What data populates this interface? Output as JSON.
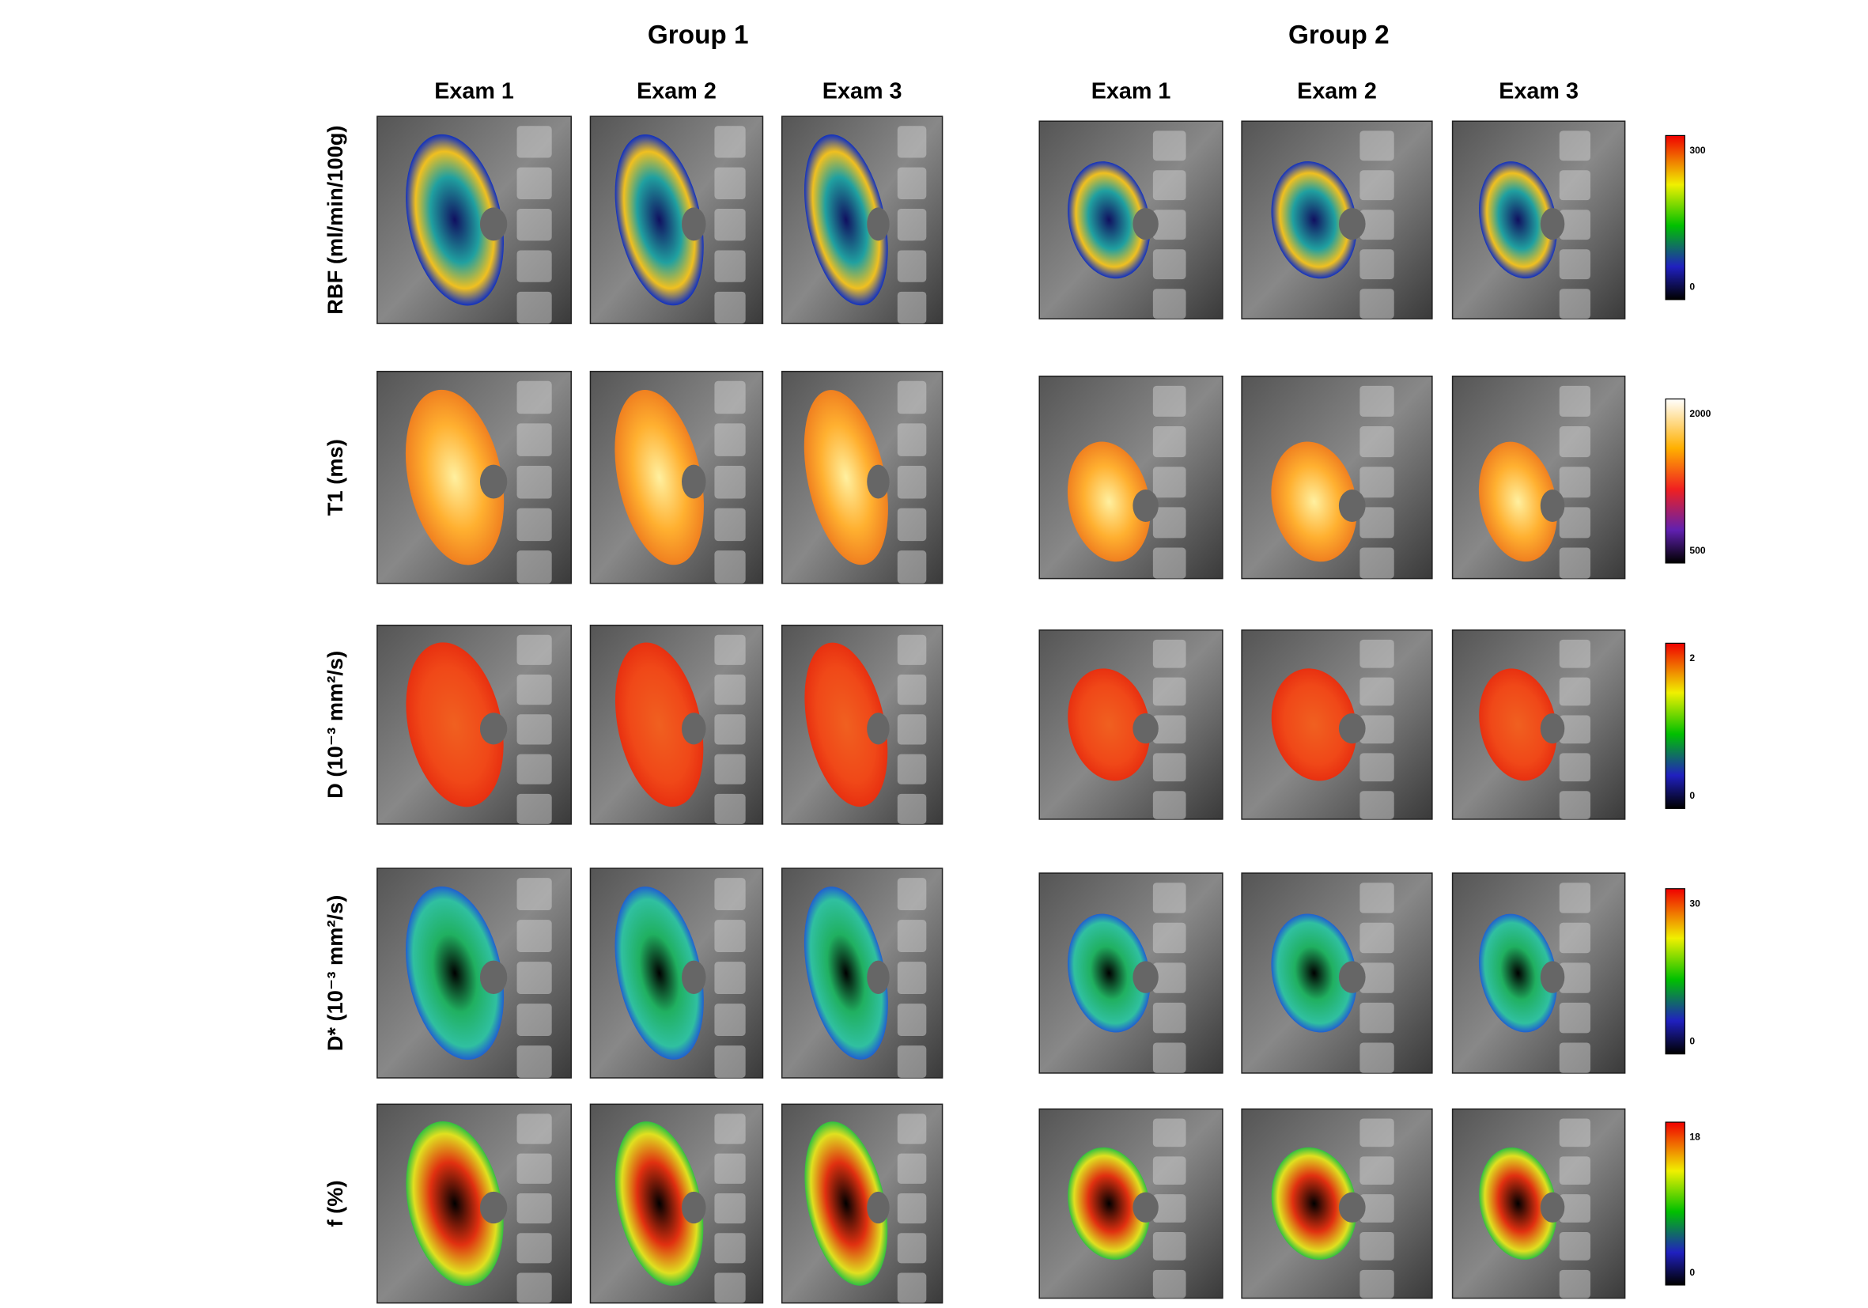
{
  "groups": [
    {
      "title": "Group 1",
      "exams": [
        "Exam 1",
        "Exam 2",
        "Exam 3"
      ]
    },
    {
      "title": "Group 2",
      "exams": [
        "Exam 1",
        "Exam 2",
        "Exam 3"
      ]
    }
  ],
  "rows": [
    {
      "label": "RBF (ml/min/100g)",
      "colorbar": {
        "max": 300,
        "min": 0
      }
    },
    {
      "label": "T1 (ms)",
      "colorbar": {
        "max": 2000,
        "min": 500
      }
    },
    {
      "label": "D (10⁻³ mm²/s)",
      "colorbar": {
        "max": 2,
        "min": 0
      }
    },
    {
      "label": "D* (10⁻³ mm²/s)",
      "colorbar": {
        "max": 30,
        "min": 0
      }
    },
    {
      "label": "f (%)",
      "colorbar": {
        "max": 18,
        "min": 0
      }
    }
  ]
}
